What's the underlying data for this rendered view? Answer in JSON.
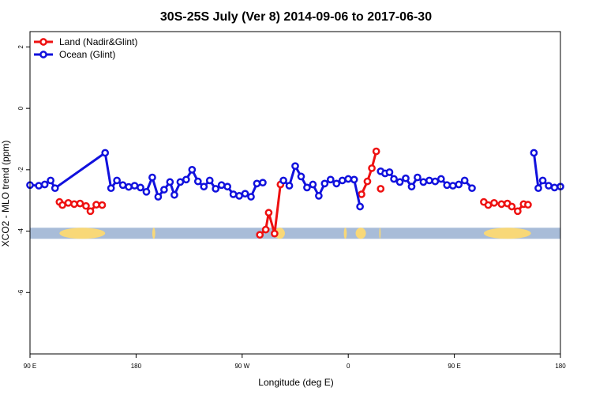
{
  "chart_data": {
    "type": "line",
    "title": "30S-25S July (Ver 8)   2014-09-06 to 2017-06-30",
    "xlabel": "Longitude (deg E)",
    "ylabel": "XCO2 - MLO trend (ppm)",
    "xlim": [
      90,
      450
    ],
    "ylim": [
      -8,
      2.5
    ],
    "grid": false,
    "legend_position": "top-left",
    "x_ticks": [
      {
        "value": 90,
        "label": "90 E"
      },
      {
        "value": 162,
        "label": "180"
      },
      {
        "value": 234,
        "label": "90 W"
      },
      {
        "value": 306,
        "label": "0"
      },
      {
        "value": 378,
        "label": "90 E"
      },
      {
        "value": 450,
        "label": "180"
      }
    ],
    "y_ticks": [
      {
        "value": 2,
        "label": "2"
      },
      {
        "value": 0,
        "label": "0"
      },
      {
        "value": -2,
        "label": "-2"
      },
      {
        "value": -4,
        "label": "-4"
      },
      {
        "value": -6,
        "label": "-6"
      }
    ],
    "surface_band": {
      "y": -4.07,
      "ocean_color": "#a8bcd8",
      "land_color": "#f8d878",
      "land_segments": [
        [
          110,
          141
        ],
        [
          173,
          175
        ],
        [
          256,
          263
        ],
        [
          303,
          305
        ],
        [
          311,
          318
        ],
        [
          327,
          328
        ],
        [
          398,
          430
        ]
      ]
    },
    "series": [
      {
        "name": "Land (Nadir&Glint)",
        "color": "#ee1111",
        "points": [
          [
            [
              110,
              -3.05
            ],
            [
              112,
              -3.15
            ],
            [
              116,
              -3.08
            ],
            [
              120,
              -3.12
            ],
            [
              124,
              -3.1
            ],
            [
              128,
              -3.18
            ],
            [
              131,
              -3.35
            ],
            [
              135,
              -3.14
            ],
            [
              139,
              -3.15
            ]
          ],
          [
            [
              246,
              -4.12
            ],
            [
              250,
              -3.95
            ],
            [
              252,
              -3.4
            ],
            [
              256,
              -4.08
            ],
            [
              260,
              -2.48
            ]
          ],
          [
            [
              315,
              -2.8
            ],
            [
              319,
              -2.38
            ],
            [
              322,
              -1.95
            ],
            [
              325,
              -1.4
            ]
          ],
          [
            [
              328,
              -2.62
            ]
          ],
          [
            [
              398,
              -3.05
            ],
            [
              401,
              -3.15
            ],
            [
              405,
              -3.08
            ],
            [
              410,
              -3.12
            ],
            [
              414,
              -3.1
            ],
            [
              417,
              -3.2
            ],
            [
              421,
              -3.35
            ],
            [
              425,
              -3.12
            ],
            [
              428,
              -3.14
            ]
          ]
        ]
      },
      {
        "name": "Ocean (Glint)",
        "color": "#1111dd",
        "points": [
          [
            [
              90,
              -2.5
            ],
            [
              96,
              -2.52
            ],
            [
              100,
              -2.48
            ],
            [
              104,
              -2.35
            ],
            [
              107,
              -2.6
            ],
            [
              141,
              -1.45
            ],
            [
              145,
              -2.6
            ],
            [
              149,
              -2.35
            ],
            [
              153,
              -2.5
            ],
            [
              157,
              -2.56
            ],
            [
              161,
              -2.52
            ],
            [
              165,
              -2.58
            ],
            [
              169,
              -2.72
            ],
            [
              173,
              -2.25
            ],
            [
              177,
              -2.88
            ],
            [
              181,
              -2.65
            ],
            [
              185,
              -2.4
            ],
            [
              188,
              -2.82
            ],
            [
              192,
              -2.4
            ],
            [
              196,
              -2.32
            ],
            [
              200,
              -2.0
            ],
            [
              204,
              -2.38
            ],
            [
              208,
              -2.55
            ],
            [
              212,
              -2.35
            ],
            [
              216,
              -2.62
            ],
            [
              220,
              -2.5
            ],
            [
              224,
              -2.55
            ],
            [
              228,
              -2.8
            ],
            [
              232,
              -2.85
            ],
            [
              236,
              -2.78
            ],
            [
              240,
              -2.88
            ],
            [
              244,
              -2.45
            ],
            [
              248,
              -2.42
            ]
          ],
          [
            [
              262,
              -2.35
            ],
            [
              266,
              -2.52
            ],
            [
              270,
              -1.88
            ],
            [
              274,
              -2.22
            ],
            [
              278,
              -2.58
            ],
            [
              282,
              -2.48
            ],
            [
              286,
              -2.85
            ],
            [
              290,
              -2.45
            ],
            [
              294,
              -2.32
            ],
            [
              298,
              -2.45
            ],
            [
              302,
              -2.35
            ],
            [
              306,
              -2.3
            ],
            [
              310,
              -2.32
            ],
            [
              314,
              -3.2
            ]
          ],
          [
            [
              328,
              -2.05
            ],
            [
              331,
              -2.12
            ],
            [
              334,
              -2.08
            ],
            [
              337,
              -2.3
            ],
            [
              341,
              -2.4
            ],
            [
              345,
              -2.28
            ],
            [
              349,
              -2.55
            ],
            [
              353,
              -2.25
            ],
            [
              357,
              -2.4
            ],
            [
              361,
              -2.35
            ],
            [
              365,
              -2.38
            ],
            [
              369,
              -2.3
            ],
            [
              373,
              -2.5
            ],
            [
              377,
              -2.52
            ],
            [
              381,
              -2.48
            ],
            [
              385,
              -2.35
            ],
            [
              390,
              -2.6
            ]
          ],
          [
            [
              432,
              -1.45
            ],
            [
              435,
              -2.6
            ],
            [
              438,
              -2.35
            ],
            [
              442,
              -2.52
            ],
            [
              446,
              -2.58
            ],
            [
              450,
              -2.55
            ]
          ]
        ]
      }
    ]
  }
}
